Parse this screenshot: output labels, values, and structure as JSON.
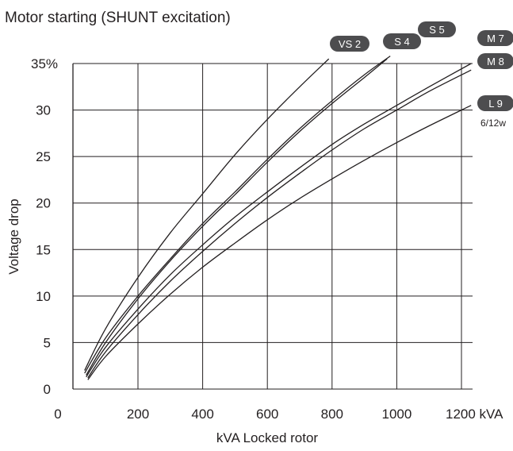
{
  "chart_data": {
    "type": "line",
    "title": "Motor starting (SHUNT excitation)",
    "xlabel": "kVA Locked rotor",
    "ylabel": "Voltage drop",
    "x_unit": "kVA",
    "y_unit": "%",
    "xlim": [
      0,
      1200
    ],
    "ylim": [
      0,
      35
    ],
    "x_ticks": [
      0,
      200,
      400,
      600,
      800,
      1000,
      1200
    ],
    "x_tick_labels": [
      "0",
      "200",
      "400",
      "600",
      "800",
      "1000",
      "1200 kVA"
    ],
    "y_ticks": [
      0,
      5,
      10,
      15,
      20,
      25,
      30,
      35
    ],
    "y_tick_labels": [
      "0",
      "5",
      "10",
      "15",
      "20",
      "25",
      "30",
      "35%"
    ],
    "grid": true,
    "series": [
      {
        "name": "VS 2",
        "x": [
          35,
          100,
          200,
          300,
          400,
          500,
          600,
          700,
          790
        ],
        "y": [
          2.0,
          6.5,
          12.0,
          16.8,
          21.0,
          25.2,
          29.0,
          32.5,
          35.5
        ]
      },
      {
        "name": "S 4",
        "x": [
          35,
          100,
          200,
          300,
          400,
          500,
          600,
          700,
          800,
          900,
          980
        ],
        "y": [
          1.7,
          5.5,
          10.0,
          14.0,
          17.8,
          21.2,
          24.7,
          28.0,
          31.0,
          33.8,
          35.8
        ]
      },
      {
        "name": "S 5",
        "x": [
          40,
          100,
          200,
          300,
          400,
          500,
          600,
          700,
          800,
          900,
          970
        ],
        "y": [
          1.5,
          5.0,
          9.7,
          13.8,
          17.5,
          20.9,
          24.4,
          27.7,
          30.7,
          33.5,
          35.5
        ]
      },
      {
        "name": "M 7",
        "x": [
          40,
          100,
          200,
          300,
          400,
          500,
          600,
          700,
          800,
          900,
          1000,
          1100,
          1230
        ],
        "y": [
          1.3,
          4.5,
          8.6,
          12.3,
          15.5,
          18.5,
          21.2,
          23.8,
          26.3,
          28.5,
          30.5,
          32.5,
          35.0
        ]
      },
      {
        "name": "M 8",
        "x": [
          45,
          100,
          200,
          300,
          400,
          500,
          600,
          700,
          800,
          900,
          1000,
          1100,
          1230
        ],
        "y": [
          1.2,
          4.0,
          8.0,
          11.6,
          14.8,
          17.8,
          20.6,
          23.2,
          25.7,
          28.0,
          30.0,
          32.0,
          34.3
        ]
      },
      {
        "name": "L 9",
        "x": [
          45,
          100,
          200,
          300,
          400,
          500,
          600,
          700,
          800,
          900,
          1000,
          1100,
          1230
        ],
        "y": [
          1.0,
          3.5,
          7.0,
          10.2,
          13.1,
          15.7,
          18.2,
          20.5,
          22.6,
          24.6,
          26.5,
          28.3,
          30.5
        ]
      }
    ],
    "legend_placement": "badges at curve ends, top-right",
    "annotations": [
      "6/12w"
    ],
    "colors": {
      "line": "#231f20",
      "badge": "#4d4d4f",
      "badge_text": "#ffffff",
      "grid": "#231f20"
    }
  }
}
